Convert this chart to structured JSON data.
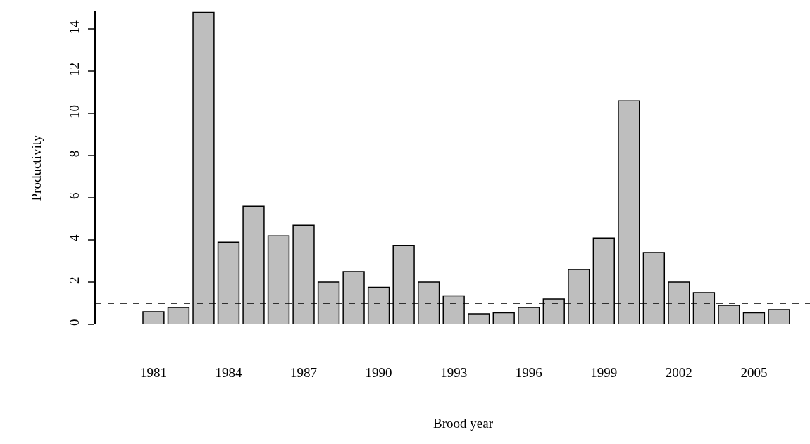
{
  "chart_data": {
    "type": "bar",
    "xlabel": "Brood year",
    "ylabel": "Productivity",
    "categories": [
      "1981",
      null,
      null,
      "1984",
      null,
      null,
      "1987",
      null,
      null,
      "1990",
      null,
      null,
      "1993",
      null,
      null,
      "1996",
      null,
      null,
      "1999",
      null,
      null,
      "2002",
      null,
      null,
      "2005",
      null
    ],
    "values": [
      0.6,
      0.8,
      14.8,
      3.9,
      5.6,
      4.2,
      4.7,
      2.0,
      2.5,
      1.75,
      3.75,
      2.0,
      1.35,
      0.5,
      0.55,
      0.8,
      1.2,
      2.6,
      4.1,
      10.6,
      3.4,
      2.0,
      1.5,
      0.9,
      0.55,
      0.7
    ],
    "color": "#bebebe",
    "ylim": [
      0,
      14.85
    ],
    "yticks": [
      0,
      2,
      4,
      6,
      8,
      10,
      12,
      14
    ],
    "ref_lines": [
      {
        "axis": "y",
        "value": 1,
        "line_style": "dashed",
        "color": "#000000"
      }
    ]
  }
}
